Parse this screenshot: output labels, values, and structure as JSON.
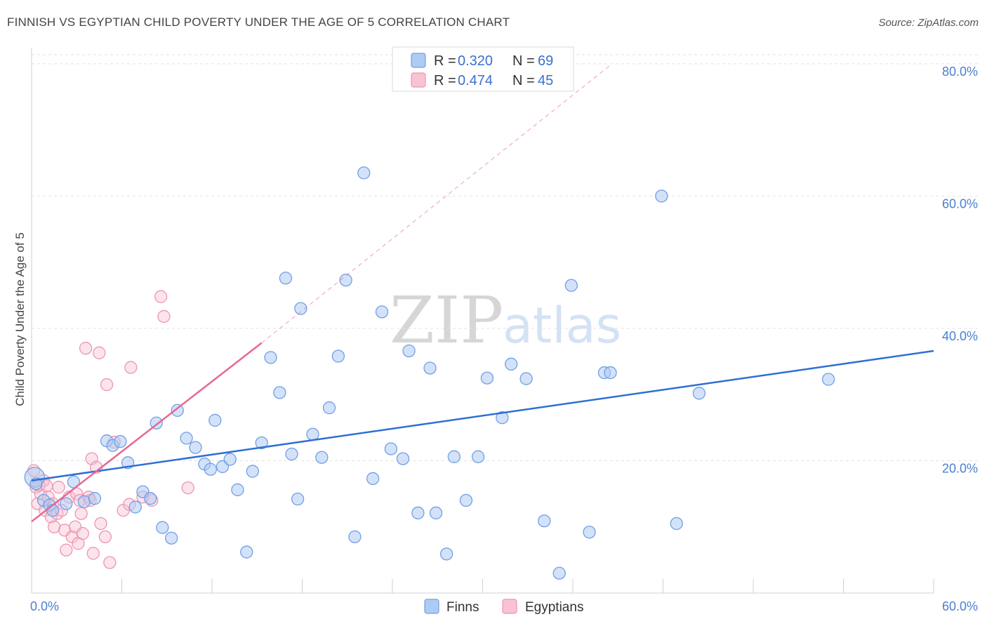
{
  "header": {
    "title": "FINNISH VS EGYPTIAN CHILD POVERTY UNDER THE AGE OF 5 CORRELATION CHART",
    "source": "Source: ZipAtlas.com"
  },
  "watermark": {
    "zip": "ZIP",
    "atlas": "atlas"
  },
  "legend": {
    "rows": [
      {
        "r_label": "R = ",
        "r_value": "0.320",
        "n_label": "N = ",
        "n_value": "69",
        "color": "#6fa0e6"
      },
      {
        "r_label": "R = ",
        "r_value": "0.474",
        "n_label": "N = ",
        "n_value": "45",
        "color": "#f29cb8"
      }
    ]
  },
  "colors": {
    "finns_fill": "#aecbf2",
    "finns_stroke": "#6fa0e6",
    "finns_line": "#2f6fd3",
    "egypt_fill": "#f8c3d3",
    "egypt_stroke": "#ee95b2",
    "egypt_line": "#e86791",
    "grid": "#e2e2e2",
    "axis_text": "#4a7fd0"
  },
  "chart_data": {
    "type": "scatter",
    "title": "FINNISH VS EGYPTIAN CHILD POVERTY UNDER THE AGE OF 5 CORRELATION CHART",
    "xlabel": "",
    "ylabel": "Child Poverty Under the Age of 5",
    "xlim": [
      0,
      60
    ],
    "ylim": [
      0,
      82
    ],
    "x_tick_labels": {
      "left": "0.0%",
      "right": "60.0%"
    },
    "y_ticks": [
      {
        "value": 20,
        "label": "20.0%"
      },
      {
        "value": 40,
        "label": "40.0%"
      },
      {
        "value": 60,
        "label": "60.0%"
      },
      {
        "value": 80,
        "label": "80.0%"
      }
    ],
    "grid": true,
    "legend_position": "top-center",
    "series": [
      {
        "name": "Finns",
        "r": 0.32,
        "n": 69,
        "trend": {
          "x0": 0,
          "y0": 17.0,
          "x1": 60,
          "y1": 36.6,
          "style": "solid"
        },
        "points": [
          [
            0.2,
            17.5
          ],
          [
            0.3,
            16.5
          ],
          [
            0.8,
            14
          ],
          [
            1.2,
            13.3
          ],
          [
            1.4,
            12.5
          ],
          [
            2.3,
            13.5
          ],
          [
            2.8,
            16.8
          ],
          [
            3.5,
            13.8
          ],
          [
            4.2,
            14.3
          ],
          [
            5.0,
            23
          ],
          [
            5.4,
            22.3
          ],
          [
            5.9,
            22.9
          ],
          [
            6.4,
            19.7
          ],
          [
            6.9,
            13
          ],
          [
            7.4,
            15.3
          ],
          [
            7.9,
            14.3
          ],
          [
            8.3,
            25.7
          ],
          [
            8.7,
            9.9
          ],
          [
            9.3,
            8.3
          ],
          [
            9.7,
            27.6
          ],
          [
            10.3,
            23.4
          ],
          [
            10.9,
            22
          ],
          [
            11.5,
            19.5
          ],
          [
            11.9,
            18.7
          ],
          [
            12.2,
            26.1
          ],
          [
            12.7,
            19.1
          ],
          [
            13.2,
            20.2
          ],
          [
            13.7,
            15.6
          ],
          [
            14.3,
            6.2
          ],
          [
            14.7,
            18.4
          ],
          [
            15.3,
            22.7
          ],
          [
            15.9,
            35.6
          ],
          [
            16.5,
            30.3
          ],
          [
            16.9,
            47.6
          ],
          [
            17.3,
            21
          ],
          [
            17.7,
            14.2
          ],
          [
            17.9,
            43
          ],
          [
            18.7,
            24
          ],
          [
            19.3,
            20.5
          ],
          [
            19.8,
            28
          ],
          [
            20.4,
            35.8
          ],
          [
            20.9,
            47.3
          ],
          [
            21.5,
            8.5
          ],
          [
            22.1,
            63.5
          ],
          [
            22.7,
            17.3
          ],
          [
            23.3,
            42.5
          ],
          [
            23.9,
            21.8
          ],
          [
            24.7,
            20.3
          ],
          [
            25.1,
            36.6
          ],
          [
            25.7,
            12.1
          ],
          [
            26.5,
            34
          ],
          [
            26.9,
            12.1
          ],
          [
            27.6,
            5.9
          ],
          [
            28.1,
            20.6
          ],
          [
            28.9,
            14
          ],
          [
            29.7,
            20.6
          ],
          [
            30.3,
            32.5
          ],
          [
            31.3,
            26.5
          ],
          [
            31.9,
            34.6
          ],
          [
            32.9,
            32.4
          ],
          [
            34.1,
            10.9
          ],
          [
            35.1,
            3
          ],
          [
            35.9,
            46.5
          ],
          [
            37.1,
            9.2
          ],
          [
            38.1,
            33.3
          ],
          [
            38.5,
            33.3
          ],
          [
            41.9,
            60
          ],
          [
            42.9,
            10.5
          ],
          [
            44.4,
            30.2
          ],
          [
            53,
            32.3
          ]
        ]
      },
      {
        "name": "Egyptians",
        "r": 0.474,
        "n": 45,
        "trend": {
          "x0": 0,
          "y0": 10.8,
          "x1": 15.3,
          "y1": 37.8,
          "x_dash_end": 38.5,
          "y_dash_end": 79.8,
          "style": "solid-then-dashed"
        },
        "points": [
          [
            0.15,
            18.5
          ],
          [
            0.3,
            16
          ],
          [
            0.4,
            13.5
          ],
          [
            0.6,
            15
          ],
          [
            0.8,
            17
          ],
          [
            0.9,
            12.5
          ],
          [
            1.1,
            14.5
          ],
          [
            1.3,
            11.5
          ],
          [
            1.4,
            13.5
          ],
          [
            1.5,
            10
          ],
          [
            1.7,
            12
          ],
          [
            1.8,
            16
          ],
          [
            2.0,
            12.5
          ],
          [
            2.2,
            9.5
          ],
          [
            2.3,
            6.5
          ],
          [
            2.5,
            14.5
          ],
          [
            2.7,
            8.5
          ],
          [
            2.9,
            10
          ],
          [
            3.0,
            15
          ],
          [
            3.1,
            7.5
          ],
          [
            3.2,
            14
          ],
          [
            3.4,
            9
          ],
          [
            3.6,
            37
          ],
          [
            3.8,
            14.5
          ],
          [
            3.9,
            14
          ],
          [
            4.0,
            20.3
          ],
          [
            4.1,
            6
          ],
          [
            4.3,
            19
          ],
          [
            4.5,
            36.3
          ],
          [
            4.6,
            10.5
          ],
          [
            4.9,
            8.5
          ],
          [
            5.0,
            31.5
          ],
          [
            5.2,
            4.6
          ],
          [
            5.5,
            22.8
          ],
          [
            6.1,
            12.5
          ],
          [
            6.5,
            13.4
          ],
          [
            6.6,
            34.1
          ],
          [
            7.4,
            14.5
          ],
          [
            8.0,
            14
          ],
          [
            8.6,
            44.8
          ],
          [
            8.8,
            41.8
          ],
          [
            10.4,
            15.9
          ],
          [
            0.5,
            16.3
          ],
          [
            1.0,
            16.2
          ],
          [
            3.3,
            12
          ]
        ]
      }
    ]
  },
  "bottom_legend": {
    "items": [
      {
        "label": "Finns"
      },
      {
        "label": "Egyptians"
      }
    ]
  }
}
